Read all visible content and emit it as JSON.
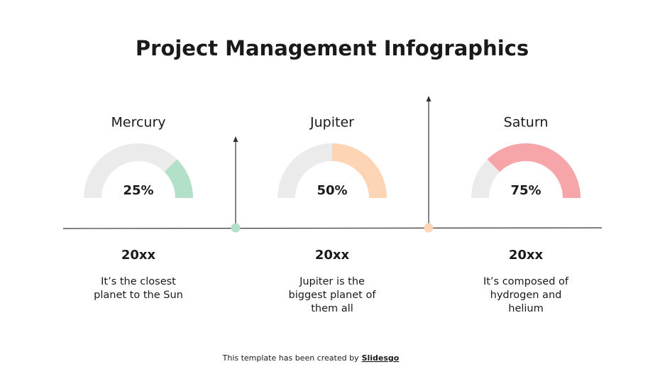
{
  "title": "Project Management Infographics",
  "items": [
    {
      "name": "Mercury",
      "value": 25,
      "value_label": "25%",
      "color": "#b3e0c8",
      "year": "20xx",
      "description": [
        "It’s the closest",
        "planet to the Sun"
      ]
    },
    {
      "name": "Jupiter",
      "value": 50,
      "value_label": "50%",
      "color": "#fdd4b4",
      "year": "20xx",
      "description": [
        "Jupiter is the",
        "biggest planet of",
        "them all"
      ]
    },
    {
      "name": "Saturn",
      "value": 75,
      "value_label": "75%",
      "color": "#f6a6a9",
      "year": "20xx",
      "description": [
        "It’s composed of",
        "hydrogen and",
        "helium"
      ]
    }
  ],
  "footer": {
    "text": "This template has been created by",
    "link": "Slidesgo"
  }
}
